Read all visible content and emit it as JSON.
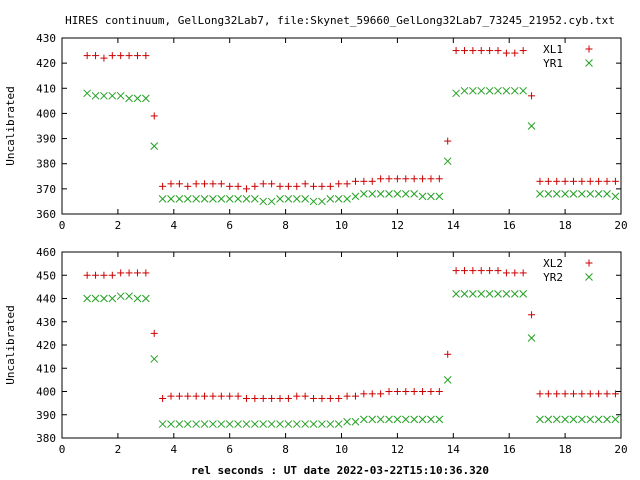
{
  "title": "HIRES continuum, GelLong32Lab7, file:Skynet_59660_GelLong32Lab7_73245_21952.cyb.txt",
  "xlabel": "rel seconds : UT date 2022-03-22T15:10:36.320",
  "colors": {
    "red": "#cc0000",
    "green": "#22a022"
  },
  "chart_data": [
    {
      "type": "scatter",
      "title": "HIRES continuum, GelLong32Lab7, file:Skynet_59660_GelLong32Lab7_73245_21952.cyb.txt",
      "xlabel": "",
      "ylabel": "Uncalibrated",
      "xlim": [
        0,
        20
      ],
      "ylim": [
        360,
        430
      ],
      "xticks": [
        0,
        2,
        4,
        6,
        8,
        10,
        12,
        14,
        16,
        18,
        20
      ],
      "yticks": [
        360,
        370,
        380,
        390,
        400,
        410,
        420,
        430
      ],
      "grid": false,
      "legend": "top-right",
      "x": [
        0.9,
        1.2,
        1.5,
        1.8,
        2.1,
        2.4,
        2.7,
        3.0,
        3.3,
        3.6,
        3.9,
        4.2,
        4.5,
        4.8,
        5.1,
        5.4,
        5.7,
        6.0,
        6.3,
        6.6,
        6.9,
        7.2,
        7.5,
        7.8,
        8.1,
        8.4,
        8.7,
        9.0,
        9.3,
        9.6,
        9.9,
        10.2,
        10.5,
        10.8,
        11.1,
        11.4,
        11.7,
        12.0,
        12.3,
        12.6,
        12.9,
        13.2,
        13.5,
        13.8,
        14.1,
        14.4,
        14.7,
        15.0,
        15.3,
        15.6,
        15.9,
        16.2,
        16.5,
        16.8,
        17.1,
        17.4,
        17.7,
        18.0,
        18.3,
        18.6,
        18.9,
        19.2,
        19.5,
        19.8
      ],
      "series": [
        {
          "name": "XL1",
          "marker": "plus",
          "color": "#cc0000",
          "values": [
            423,
            423,
            422,
            423,
            423,
            423,
            423,
            423,
            399,
            371,
            372,
            372,
            371,
            372,
            372,
            372,
            372,
            371,
            371,
            370,
            371,
            372,
            372,
            371,
            371,
            371,
            372,
            371,
            371,
            371,
            372,
            372,
            373,
            373,
            373,
            374,
            374,
            374,
            374,
            374,
            374,
            374,
            374,
            389,
            425,
            425,
            425,
            425,
            425,
            425,
            424,
            424,
            425,
            407,
            373,
            373,
            373,
            373,
            373,
            373,
            373,
            373,
            373,
            373
          ]
        },
        {
          "name": "YR1",
          "marker": "cross",
          "color": "#22a022",
          "values": [
            408,
            407,
            407,
            407,
            407,
            406,
            406,
            406,
            387,
            366,
            366,
            366,
            366,
            366,
            366,
            366,
            366,
            366,
            366,
            366,
            366,
            365,
            365,
            366,
            366,
            366,
            366,
            365,
            365,
            366,
            366,
            366,
            367,
            368,
            368,
            368,
            368,
            368,
            368,
            368,
            367,
            367,
            367,
            381,
            408,
            409,
            409,
            409,
            409,
            409,
            409,
            409,
            409,
            395,
            368,
            368,
            368,
            368,
            368,
            368,
            368,
            368,
            368,
            367
          ]
        }
      ]
    },
    {
      "type": "scatter",
      "title": "",
      "xlabel": "rel seconds : UT date 2022-03-22T15:10:36.320",
      "ylabel": "Uncalibrated",
      "xlim": [
        0,
        20
      ],
      "ylim": [
        380,
        460
      ],
      "xticks": [
        0,
        2,
        4,
        6,
        8,
        10,
        12,
        14,
        16,
        18,
        20
      ],
      "yticks": [
        380,
        390,
        400,
        410,
        420,
        430,
        440,
        450,
        460
      ],
      "grid": false,
      "legend": "top-right",
      "x": [
        0.9,
        1.2,
        1.5,
        1.8,
        2.1,
        2.4,
        2.7,
        3.0,
        3.3,
        3.6,
        3.9,
        4.2,
        4.5,
        4.8,
        5.1,
        5.4,
        5.7,
        6.0,
        6.3,
        6.6,
        6.9,
        7.2,
        7.5,
        7.8,
        8.1,
        8.4,
        8.7,
        9.0,
        9.3,
        9.6,
        9.9,
        10.2,
        10.5,
        10.8,
        11.1,
        11.4,
        11.7,
        12.0,
        12.3,
        12.6,
        12.9,
        13.2,
        13.5,
        13.8,
        14.1,
        14.4,
        14.7,
        15.0,
        15.3,
        15.6,
        15.9,
        16.2,
        16.5,
        16.8,
        17.1,
        17.4,
        17.7,
        18.0,
        18.3,
        18.6,
        18.9,
        19.2,
        19.5,
        19.8
      ],
      "series": [
        {
          "name": "XL2",
          "marker": "plus",
          "color": "#cc0000",
          "values": [
            450,
            450,
            450,
            450,
            451,
            451,
            451,
            451,
            425,
            397,
            398,
            398,
            398,
            398,
            398,
            398,
            398,
            398,
            398,
            397,
            397,
            397,
            397,
            397,
            397,
            398,
            398,
            397,
            397,
            397,
            397,
            398,
            398,
            399,
            399,
            399,
            400,
            400,
            400,
            400,
            400,
            400,
            400,
            416,
            452,
            452,
            452,
            452,
            452,
            452,
            451,
            451,
            451,
            433,
            399,
            399,
            399,
            399,
            399,
            399,
            399,
            399,
            399,
            399
          ]
        },
        {
          "name": "YR2",
          "marker": "cross",
          "color": "#22a022",
          "values": [
            440,
            440,
            440,
            440,
            441,
            441,
            440,
            440,
            414,
            386,
            386,
            386,
            386,
            386,
            386,
            386,
            386,
            386,
            386,
            386,
            386,
            386,
            386,
            386,
            386,
            386,
            386,
            386,
            386,
            386,
            386,
            387,
            387,
            388,
            388,
            388,
            388,
            388,
            388,
            388,
            388,
            388,
            388,
            405,
            442,
            442,
            442,
            442,
            442,
            442,
            442,
            442,
            442,
            423,
            388,
            388,
            388,
            388,
            388,
            388,
            388,
            388,
            388,
            388
          ]
        }
      ]
    }
  ]
}
